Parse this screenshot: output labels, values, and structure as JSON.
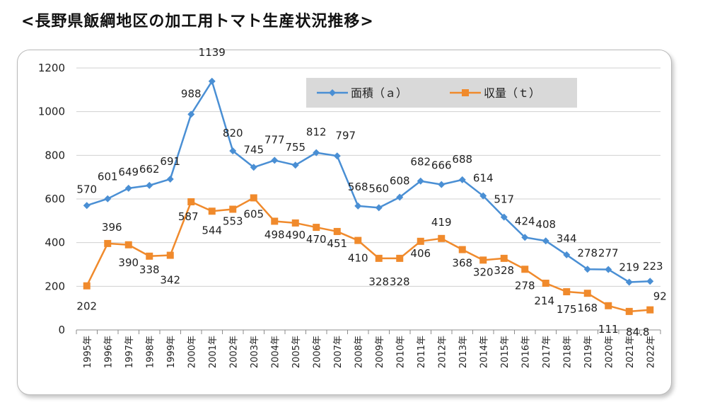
{
  "page": {
    "title": "<長野県飯綱地区の加工用トマト生産状況推移>"
  },
  "chart_data": {
    "type": "line",
    "title": "",
    "xlabel": "",
    "ylabel": "",
    "ylim": [
      0,
      1200
    ],
    "yticks": [
      "0",
      "200",
      "400",
      "600",
      "800",
      "1000",
      "1200"
    ],
    "grid": true,
    "legend_position": "top-right",
    "categories": [
      "1995年",
      "1996年",
      "1997年",
      "1998年",
      "1999年",
      "2000年",
      "2001年",
      "2002年",
      "2003年",
      "2004年",
      "2005年",
      "2006年",
      "2007年",
      "2008年",
      "2009年",
      "2010年",
      "2011年",
      "2012年",
      "2013年",
      "2014年",
      "2015年",
      "2016年",
      "2017年",
      "2018年",
      "2019年",
      "2020年",
      "2021年",
      "2022年"
    ],
    "series": [
      {
        "name": "面積（ａ）",
        "color": "#4a8fd4",
        "marker": "diamond",
        "values": [
          570,
          601,
          649,
          662,
          691,
          988,
          1139,
          820,
          745,
          777,
          755,
          812,
          797,
          568,
          560,
          608,
          682,
          666,
          688,
          614,
          517,
          424,
          408,
          344,
          278,
          277,
          219,
          223
        ],
        "labels": [
          "570",
          "601",
          "649",
          "662",
          "691",
          "988",
          "1139",
          "820",
          "745",
          "777",
          "755",
          "812",
          "797",
          "568",
          "560",
          "608",
          "682",
          "666",
          "688",
          "614",
          "517",
          "424",
          "408",
          "344",
          "278",
          "277",
          "219",
          "223"
        ]
      },
      {
        "name": "収量（ｔ）",
        "color": "#f08a2c",
        "marker": "square",
        "values": [
          202,
          396,
          390,
          338,
          342,
          587,
          544,
          553,
          605,
          498,
          490,
          470,
          451,
          410,
          328,
          328,
          406,
          419,
          368,
          320,
          328,
          278,
          214,
          175,
          168,
          111,
          84.8,
          92
        ],
        "labels": [
          "202",
          "396",
          "390",
          "338",
          "342",
          "587",
          "544",
          "553",
          "605",
          "498",
          "490",
          "470",
          "451",
          "410",
          "328",
          "328",
          "406",
          "419",
          "368",
          "320",
          "328",
          "278",
          "214",
          "175",
          "168",
          "111",
          "84.8",
          "92"
        ]
      }
    ]
  }
}
